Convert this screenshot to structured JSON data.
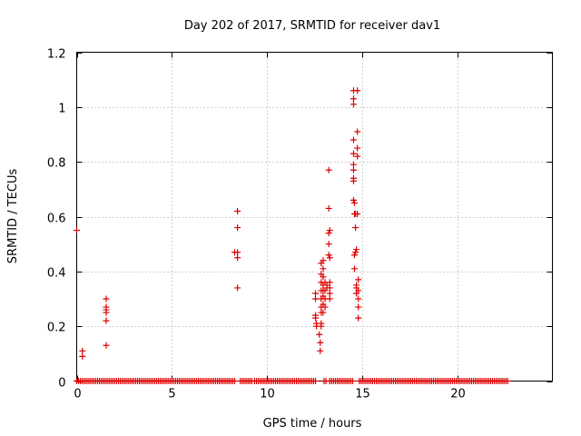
{
  "chart_data": {
    "type": "scatter",
    "title": "Day 202 of 2017, SRMTID for receiver dav1",
    "xlabel": "GPS time / hours",
    "ylabel": "SRMTID / TECUs",
    "xlim": [
      0,
      25
    ],
    "ylim": [
      0,
      1.2
    ],
    "xticks": [
      0,
      5,
      10,
      15,
      20
    ],
    "xtick_labels": [
      "0",
      "5",
      "10",
      "15",
      "20"
    ],
    "yticks": [
      0,
      0.2,
      0.4,
      0.6,
      0.8,
      1.0,
      1.2
    ],
    "ytick_labels": [
      "0",
      "0.2",
      "0.4",
      "0.6",
      "0.8",
      "1",
      "1.2"
    ],
    "grid": true,
    "marker": "+",
    "color": "#dd0000",
    "baseline_segments": [
      [
        0.0,
        8.35
      ],
      [
        8.6,
        9.2
      ],
      [
        9.35,
        12.6
      ],
      [
        13.0,
        13.15
      ],
      [
        13.3,
        14.55
      ],
      [
        14.85,
        22.7
      ]
    ],
    "baseline_step": 0.1,
    "points": [
      [
        0.0,
        0.55
      ],
      [
        0.3,
        0.11
      ],
      [
        0.3,
        0.09
      ],
      [
        1.55,
        0.3
      ],
      [
        1.55,
        0.27
      ],
      [
        1.55,
        0.26
      ],
      [
        1.55,
        0.25
      ],
      [
        1.55,
        0.22
      ],
      [
        1.55,
        0.13
      ],
      [
        8.3,
        0.47
      ],
      [
        8.45,
        0.62
      ],
      [
        8.45,
        0.56
      ],
      [
        8.45,
        0.47
      ],
      [
        8.45,
        0.45
      ],
      [
        8.45,
        0.34
      ],
      [
        12.55,
        0.32
      ],
      [
        12.55,
        0.3
      ],
      [
        12.55,
        0.24
      ],
      [
        12.55,
        0.23
      ],
      [
        12.6,
        0.21
      ],
      [
        12.6,
        0.2
      ],
      [
        12.75,
        0.17
      ],
      [
        12.8,
        0.14
      ],
      [
        12.8,
        0.11
      ],
      [
        12.85,
        0.43
      ],
      [
        12.85,
        0.39
      ],
      [
        12.85,
        0.36
      ],
      [
        12.85,
        0.33
      ],
      [
        12.85,
        0.3
      ],
      [
        12.85,
        0.27
      ],
      [
        12.85,
        0.25
      ],
      [
        12.85,
        0.21
      ],
      [
        12.85,
        0.2
      ],
      [
        12.95,
        0.44
      ],
      [
        12.95,
        0.41
      ],
      [
        12.95,
        0.38
      ],
      [
        12.95,
        0.35
      ],
      [
        12.95,
        0.33
      ],
      [
        12.95,
        0.31
      ],
      [
        12.95,
        0.28
      ],
      [
        12.95,
        0.25
      ],
      [
        13.05,
        0.36
      ],
      [
        13.05,
        0.33
      ],
      [
        13.05,
        0.3
      ],
      [
        13.05,
        0.27
      ],
      [
        13.15,
        0.35
      ],
      [
        13.15,
        0.34
      ],
      [
        13.25,
        0.77
      ],
      [
        13.25,
        0.63
      ],
      [
        13.25,
        0.54
      ],
      [
        13.25,
        0.5
      ],
      [
        13.25,
        0.46
      ],
      [
        13.3,
        0.55
      ],
      [
        13.3,
        0.45
      ],
      [
        13.3,
        0.36
      ],
      [
        13.3,
        0.34
      ],
      [
        13.3,
        0.32
      ],
      [
        13.3,
        0.3
      ],
      [
        14.55,
        1.06
      ],
      [
        14.55,
        1.03
      ],
      [
        14.55,
        1.01
      ],
      [
        14.55,
        0.88
      ],
      [
        14.55,
        0.83
      ],
      [
        14.55,
        0.79
      ],
      [
        14.55,
        0.77
      ],
      [
        14.55,
        0.74
      ],
      [
        14.55,
        0.73
      ],
      [
        14.55,
        0.66
      ],
      [
        14.6,
        0.65
      ],
      [
        14.6,
        0.61
      ],
      [
        14.65,
        0.61
      ],
      [
        14.65,
        0.56
      ],
      [
        14.65,
        0.47
      ],
      [
        14.6,
        0.46
      ],
      [
        14.6,
        0.41
      ],
      [
        14.75,
        1.06
      ],
      [
        14.75,
        0.91
      ],
      [
        14.75,
        0.85
      ],
      [
        14.75,
        0.82
      ],
      [
        14.75,
        0.61
      ],
      [
        14.7,
        0.48
      ],
      [
        14.7,
        0.35
      ],
      [
        14.7,
        0.34
      ],
      [
        14.7,
        0.32
      ],
      [
        14.8,
        0.37
      ],
      [
        14.8,
        0.33
      ],
      [
        14.8,
        0.3
      ],
      [
        14.8,
        0.27
      ],
      [
        14.8,
        0.23
      ]
    ]
  }
}
